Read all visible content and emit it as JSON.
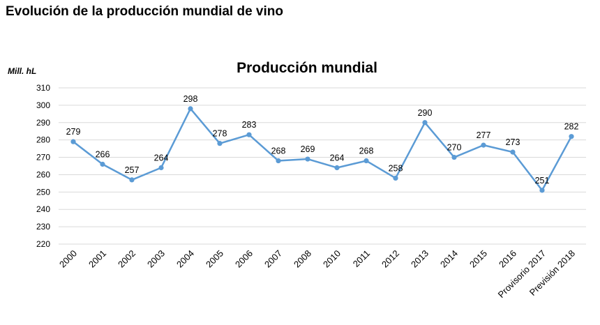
{
  "page": {
    "heading": "Evolución de la producción mundial de vino"
  },
  "chart_data": {
    "type": "line",
    "title": "Producción mundial",
    "ylabel": "Mill. hL",
    "xlabel": "",
    "categories": [
      "2000",
      "2001",
      "2002",
      "2003",
      "2004",
      "2005",
      "2006",
      "2007",
      "2008",
      "2010",
      "2011",
      "2012",
      "2013",
      "2014",
      "2015",
      "2016",
      "Provisorio 2017",
      "Previsión 2018"
    ],
    "series": [
      {
        "values": [
          279,
          266,
          257,
          264,
          298,
          278,
          283,
          268,
          269,
          264,
          268,
          258,
          290,
          270,
          277,
          273,
          251,
          282
        ],
        "color": "#5b9bd5"
      }
    ],
    "data_labels": [
      "279",
      "266",
      "257",
      "264",
      "298",
      "278",
      "283",
      "268",
      "269",
      "264",
      "268",
      "258",
      "290",
      "270",
      "277",
      "273",
      "251",
      "282"
    ],
    "ylim": [
      220,
      310
    ],
    "yticks": [
      "220",
      "230",
      "240",
      "250",
      "260",
      "270",
      "280",
      "290",
      "300",
      "310"
    ],
    "grid": true,
    "legend": "none"
  }
}
